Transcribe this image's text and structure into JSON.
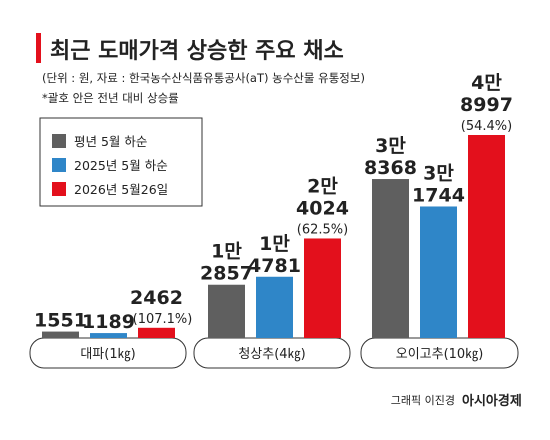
{
  "chart_data": {
    "type": "bar",
    "title": "최근 도매가격 상승한 주요 채소",
    "subtitle": "(단위 : 원, 자료 : 한국농수산식품유통공사(aT) 농수산물 유통정보)",
    "note": "*괄호 안은 전년 대비 상승률",
    "categories": [
      "대파(1㎏)",
      "청상추(4㎏)",
      "오이고추(10㎏)"
    ],
    "series": [
      {
        "name": "평년 5월 하순",
        "color": "#5f5f5f",
        "values": [
          1551,
          12857,
          38368
        ],
        "value_labels": [
          "1551",
          "1만\n2857",
          "3만\n8368"
        ]
      },
      {
        "name": "2025년 5월 하순",
        "color": "#2f86c8",
        "values": [
          1189,
          14781,
          31744
        ],
        "value_labels": [
          "1189",
          "1만\n4781",
          "3만\n1744"
        ]
      },
      {
        "name": "2026년 5월26일",
        "color": "#e3101c",
        "values": [
          2462,
          24024,
          48997
        ],
        "value_labels": [
          "2462",
          "2만\n4024",
          "4만\n8997"
        ],
        "change_labels": [
          "(107.1%)",
          "(62.5%)",
          "(54.4%)"
        ]
      }
    ]
  },
  "footer": {
    "graphic": "그래픽 이진경",
    "publisher": "아시아경제"
  }
}
